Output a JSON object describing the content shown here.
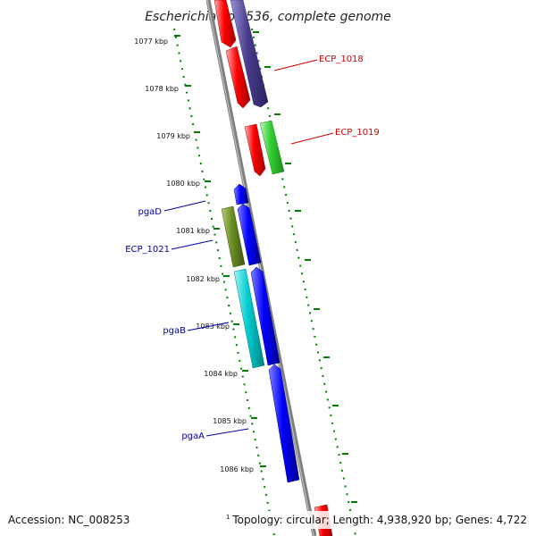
{
  "title": "Escherichia coli 536, complete genome",
  "ruler_labels": [
    "1077 kbp",
    "1078 kbp",
    "1079 kbp",
    "1080 kbp",
    "1081 kbp",
    "1082 kbp",
    "1083 kbp",
    "1084 kbp",
    "1085 kbp",
    "1086 kbp"
  ],
  "gene_labels": {
    "ecp_1018": "ECP_1018",
    "ecp_1019": "ECP_1019",
    "pgaD": "pgaD",
    "ecp_1021": "ECP_1021",
    "pgaB": "pgaB",
    "pgaA": "pgaA"
  },
  "footer": {
    "accession": "Accession: NC_008253",
    "marker": "1",
    "summary": "Topology: circular; Length: 4,938,920 bp; Genes: 4,722"
  },
  "colors": {
    "red": "#ff0000",
    "slate": "#483d8b",
    "green": "#32cd32",
    "blue": "#0000ff",
    "olive": "#6b8e23",
    "cyan": "#00ced1",
    "backbone": "#808080",
    "ticks": "#007f00",
    "label_red": "#cc0000",
    "label_blue": "#0000aa"
  }
}
